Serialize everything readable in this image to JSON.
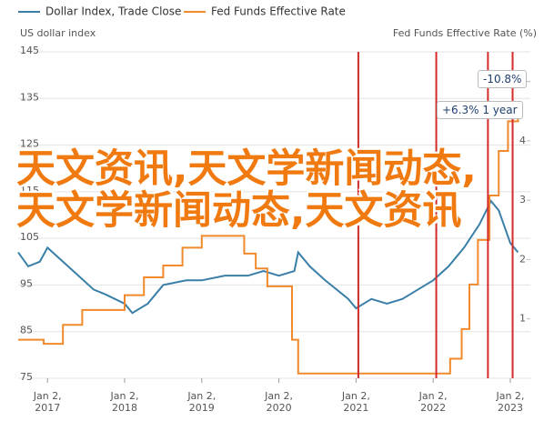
{
  "chart_data": {
    "type": "line",
    "legend": [
      "Dollar Index, Trade Close",
      "Fed Funds Effective Rate"
    ],
    "y_label": "US dollar index",
    "y2_label": "Fed Funds Effective Rate (%)",
    "xlim": [
      2016.62,
      2023.26
    ],
    "xticks": [
      {
        "value": 2017,
        "label": "Jan 2, 2017"
      },
      {
        "value": 2018,
        "label": "Jan 2, 2018"
      },
      {
        "value": 2019,
        "label": "Jan 2, 2019"
      },
      {
        "value": 2020,
        "label": "Jan 2, 2020"
      },
      {
        "value": 2021,
        "label": "Jan 2, 2021"
      },
      {
        "value": 2022,
        "label": "Jan 2, 2022"
      },
      {
        "value": 2023,
        "label": "Jan 2, 2023"
      }
    ],
    "ylim": [
      75,
      145
    ],
    "yticks": [
      75,
      85,
      95,
      105,
      115,
      125,
      135,
      145
    ],
    "y2lim": [
      0,
      5.5
    ],
    "y2ticks": [
      1,
      2,
      3,
      4,
      5
    ],
    "grid": true,
    "series": [
      {
        "name": "Dollar Index, Trade Close",
        "color": "#3a7fa8",
        "step": false,
        "x": [
          2016.62,
          2016.75,
          2016.9,
          2017.0,
          2017.2,
          2017.4,
          2017.6,
          2017.75,
          2018.0,
          2018.1,
          2018.3,
          2018.5,
          2018.8,
          2019.0,
          2019.3,
          2019.6,
          2019.8,
          2020.0,
          2020.2,
          2020.25,
          2020.4,
          2020.6,
          2020.9,
          2021.0,
          2021.2,
          2021.4,
          2021.6,
          2021.8,
          2022.0,
          2022.2,
          2022.4,
          2022.6,
          2022.75,
          2022.85,
          2023.0,
          2023.1
        ],
        "values": [
          102,
          99,
          100,
          103,
          100,
          97,
          94,
          93,
          91,
          89,
          91,
          95,
          96,
          96,
          97,
          97,
          98,
          97,
          98,
          102,
          99,
          96,
          92,
          90,
          92,
          91,
          92,
          94,
          96,
          99,
          103,
          108,
          113,
          111,
          104,
          102
        ]
      },
      {
        "name": "Fed Funds Effective Rate",
        "color": "#f08a2c",
        "axis": "y2",
        "step": true,
        "x": [
          2016.62,
          2016.95,
          2017.2,
          2017.45,
          2018.0,
          2018.25,
          2018.5,
          2018.75,
          2019.0,
          2019.55,
          2019.7,
          2019.85,
          2020.17,
          2020.25,
          2022.22,
          2022.37,
          2022.47,
          2022.58,
          2022.73,
          2022.85,
          2022.97,
          2023.1
        ],
        "values": [
          0.65,
          0.58,
          0.9,
          1.15,
          1.4,
          1.7,
          1.9,
          2.2,
          2.4,
          2.1,
          1.85,
          1.55,
          0.65,
          0.08,
          0.33,
          0.83,
          1.58,
          2.33,
          3.08,
          3.83,
          4.33,
          4.58
        ]
      }
    ],
    "event_lines": {
      "color": "#d62b2b",
      "x": [
        2021.03,
        2022.04,
        2022.71,
        2023.03
      ]
    },
    "annotations": [
      "-10.8%",
      "+6.3% 1 year"
    ],
    "overlay_text": "天文资讯,天文学新闻动态,天文学新闻动态,天文资讯"
  }
}
